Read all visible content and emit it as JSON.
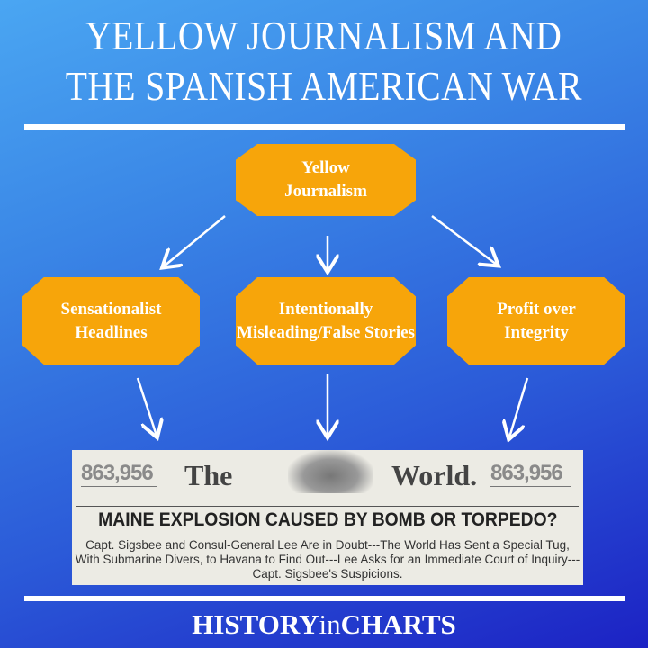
{
  "title": {
    "line1": "YELLOW JOURNALISM AND",
    "line2": "THE SPANISH AMERICAN WAR"
  },
  "diagram": {
    "root": "Yellow Journalism",
    "children": [
      "Sensationalist Headlines",
      "Intentionally Misleading/False Stories",
      "Profit over Integrity"
    ]
  },
  "newspaper": {
    "circulation_left": "863,956",
    "circulation_right": "863,956",
    "masthead_left": "The",
    "masthead_right": "World.",
    "headline": "MAINE EXPLOSION CAUSED BY BOMB OR TORPEDO?",
    "deck": "Capt. Sigsbee and Consul-General Lee Are in Doubt---The World Has Sent a Special Tug, With Submarine Divers, to Havana to Find Out---Lee Asks for an Immediate Court of Inquiry---Capt. Sigsbee's Suspicions."
  },
  "brand": {
    "part1": "HISTORY",
    "part2": "in",
    "part3": "CHARTS"
  },
  "colors": {
    "box": "#f7a50a",
    "background_top": "#4aa6f2",
    "background_bottom": "#1c22c4"
  }
}
